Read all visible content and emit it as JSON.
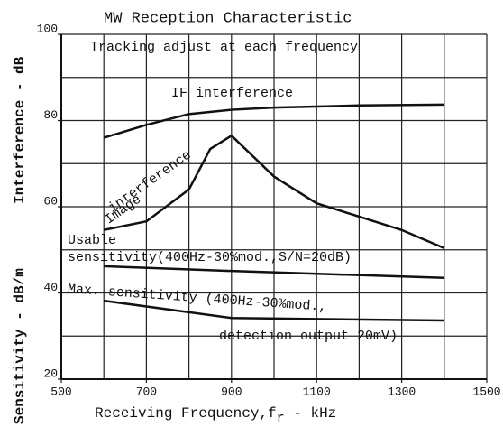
{
  "chart_data": {
    "type": "line",
    "title": "MW Reception Characteristic",
    "x_label": "Receiving Frequency,f",
    "x_label_sub": "r",
    "x_label_tail": " - kHz",
    "y_label_lower": "Sensitivity - dB/m",
    "y_label_upper": "Interference - dB",
    "xlim": [
      500,
      1500
    ],
    "xticks": [
      500,
      700,
      900,
      1100,
      1300,
      1500
    ],
    "x_minor_ticks": [
      600,
      800,
      1000,
      1200,
      1400
    ],
    "ylim": [
      20,
      100
    ],
    "yticks": [
      20,
      40,
      60,
      80,
      100
    ],
    "y_minor_ticks": [
      30,
      50,
      70,
      90
    ],
    "grid": true,
    "annotations": [
      "Tracking adjust at each frequency",
      "IF interference",
      "Image",
      "interference",
      "Usable",
      "sensitivity(400Hz-30%mod.,S/N=20dB)",
      "Max. sensitivity (400Hz-30%mod.,",
      "detection output 20mV)"
    ],
    "series": [
      {
        "color": "#111",
        "x": [
          600,
          700,
          800,
          900,
          1000,
          1200,
          1400
        ],
        "values": [
          76,
          79,
          81.5,
          82.5,
          83,
          83.5,
          83.7
        ]
      },
      {
        "color": "#111",
        "x": [
          600,
          700,
          800,
          850,
          900,
          1000,
          1100,
          1200,
          1300,
          1400
        ],
        "values": [
          54.6,
          56.6,
          64,
          73.4,
          76.5,
          67,
          60.8,
          57.7,
          54.6,
          50.4
        ]
      },
      {
        "color": "#111",
        "x": [
          600,
          900,
          1400
        ],
        "values": [
          46.2,
          45.1,
          43.5
        ]
      },
      {
        "color": "#111",
        "x": [
          600,
          900,
          1400
        ],
        "values": [
          38.2,
          34.2,
          33.6
        ]
      }
    ]
  }
}
